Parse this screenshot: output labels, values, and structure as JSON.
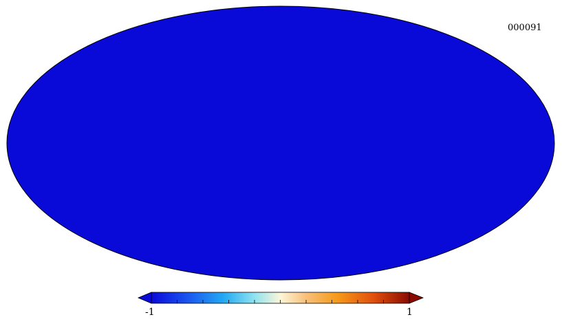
{
  "map": {
    "id_label": "000091",
    "projection": "mollweide",
    "palette": [
      "#0a0ad9",
      "#1a55f0",
      "#23a9f2",
      "#8fe3f0",
      "#fdf6d8",
      "#f8c07a",
      "#f59a1a",
      "#e2500d",
      "#8a0a00"
    ]
  },
  "colorbar": {
    "min_label": "-1",
    "max_label": "1",
    "min_value": -1,
    "max_value": 1,
    "ticks": [
      -0.8,
      -0.6,
      -0.4,
      -0.2,
      0,
      0.2,
      0.4,
      0.6,
      0.8
    ]
  }
}
